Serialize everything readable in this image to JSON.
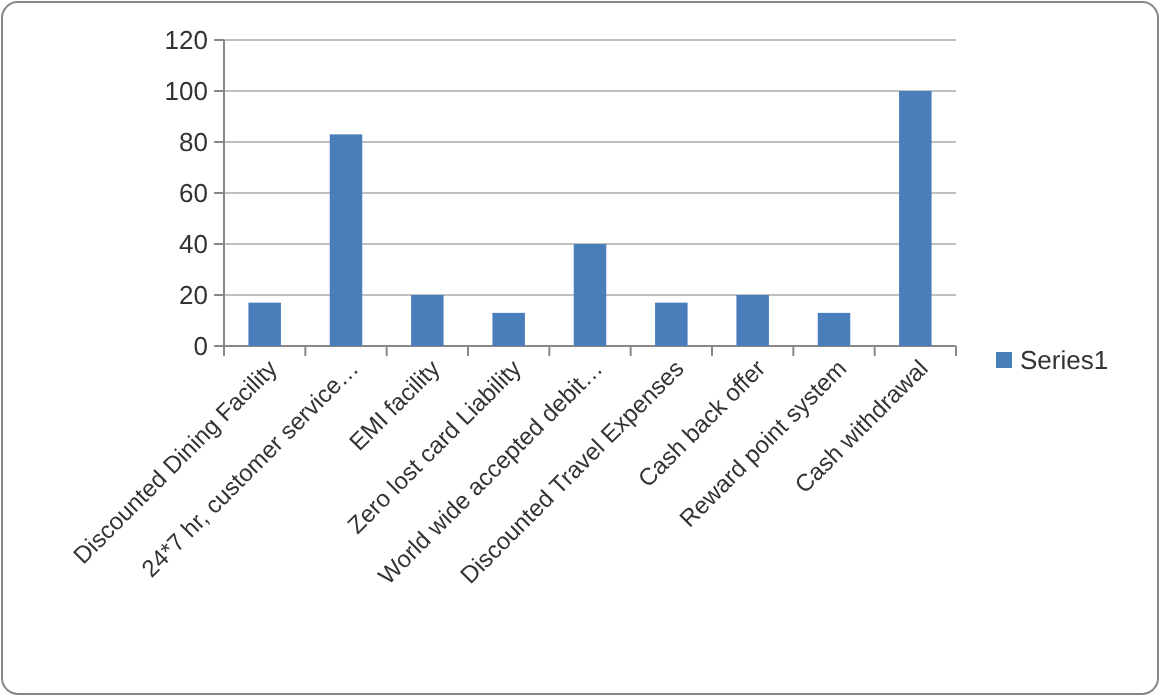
{
  "chart_data": {
    "type": "bar",
    "categories": [
      "Discounted Dining Facility",
      "24*7 hr, customer service…",
      "EMI facility",
      "Zero lost card Liability",
      "World wide accepted debit…",
      "Discounted Travel Expenses",
      "Cash back offer",
      "Reward point system",
      "Cash withdrawal"
    ],
    "series": [
      {
        "name": "Series1",
        "color": "#4a7ebb",
        "values": [
          17,
          83,
          20,
          13,
          40,
          17,
          20,
          13,
          100
        ]
      }
    ],
    "ylim": [
      0,
      120
    ],
    "yticks": [
      0,
      20,
      40,
      60,
      80,
      100,
      120
    ],
    "grid": "y",
    "legend": "right"
  }
}
